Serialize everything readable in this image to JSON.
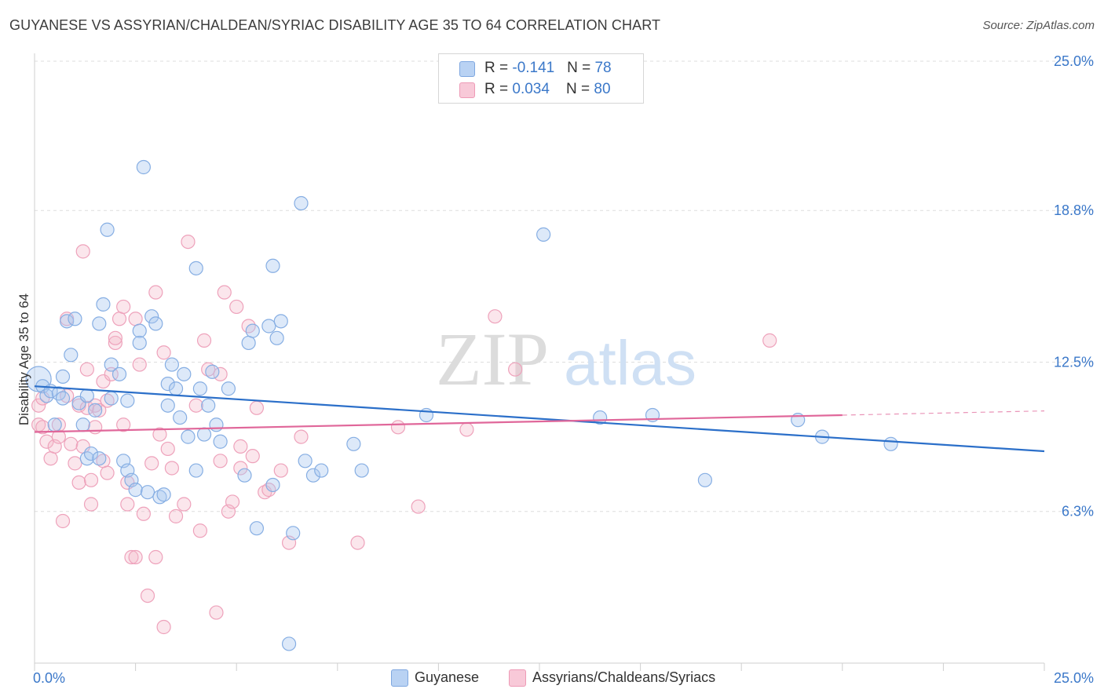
{
  "title": "GUYANESE VS ASSYRIAN/CHALDEAN/SYRIAC DISABILITY AGE 35 TO 64 CORRELATION CHART",
  "source": "Source: ZipAtlas.com",
  "watermark": {
    "zip": "ZIP",
    "atlas": "atlas"
  },
  "legend": {
    "series1": {
      "r_label": "R = ",
      "r_value": "-0.141",
      "n_label": "N = ",
      "n_value": "78"
    },
    "series2": {
      "r_label": "R = ",
      "r_value": "0.034",
      "n_label": "N = ",
      "n_value": "80"
    }
  },
  "chart_data": {
    "type": "scatter",
    "title": "GUYANESE VS ASSYRIAN/CHALDEAN/SYRIAC DISABILITY AGE 35 TO 64 CORRELATION CHART",
    "xlabel": "",
    "ylabel": "Disability Age 35 to 64",
    "xlim": [
      0,
      25
    ],
    "ylim": [
      0,
      25
    ],
    "x_tick_labels": [
      "0.0%",
      "25.0%"
    ],
    "y_tick_values": [
      6.3,
      12.5,
      18.8,
      25.0
    ],
    "y_tick_labels": [
      "6.3%",
      "12.5%",
      "18.8%",
      "25.0%"
    ],
    "grid": true,
    "legend_position": "top-center",
    "colors": {
      "guyanese": "#a9c7ef",
      "guyanese_line": "#2b6fc9",
      "assyrian": "#f4b6c9",
      "assyrian_line": "#e0679a"
    },
    "series": [
      {
        "name": "Guyanese",
        "r": -0.141,
        "n": 78,
        "trend": {
          "x": [
            0,
            25
          ],
          "y": [
            11.5,
            8.8
          ]
        },
        "points": [
          [
            0.1,
            11.8
          ],
          [
            0.2,
            11.5
          ],
          [
            0.3,
            11.1
          ],
          [
            0.4,
            11.3
          ],
          [
            0.5,
            9.9
          ],
          [
            0.6,
            11.2
          ],
          [
            0.7,
            11.0
          ],
          [
            0.7,
            11.9
          ],
          [
            0.8,
            14.2
          ],
          [
            0.9,
            12.8
          ],
          [
            1.0,
            14.3
          ],
          [
            1.1,
            10.8
          ],
          [
            1.2,
            9.9
          ],
          [
            1.3,
            8.5
          ],
          [
            1.3,
            11.1
          ],
          [
            1.4,
            8.7
          ],
          [
            1.5,
            10.5
          ],
          [
            1.6,
            8.5
          ],
          [
            1.6,
            14.1
          ],
          [
            1.7,
            14.9
          ],
          [
            1.8,
            18.0
          ],
          [
            1.9,
            11.0
          ],
          [
            1.9,
            12.4
          ],
          [
            2.1,
            12.0
          ],
          [
            2.2,
            8.4
          ],
          [
            2.3,
            10.9
          ],
          [
            2.3,
            8.0
          ],
          [
            2.4,
            7.6
          ],
          [
            2.5,
            7.2
          ],
          [
            2.6,
            13.8
          ],
          [
            2.6,
            13.3
          ],
          [
            2.7,
            20.6
          ],
          [
            2.8,
            7.1
          ],
          [
            2.9,
            14.4
          ],
          [
            3.0,
            14.1
          ],
          [
            3.1,
            6.9
          ],
          [
            3.2,
            7.0
          ],
          [
            3.3,
            11.6
          ],
          [
            3.3,
            10.7
          ],
          [
            3.4,
            12.4
          ],
          [
            3.5,
            11.4
          ],
          [
            3.6,
            10.2
          ],
          [
            3.7,
            12.0
          ],
          [
            3.8,
            9.4
          ],
          [
            4.0,
            16.4
          ],
          [
            4.0,
            8.0
          ],
          [
            4.1,
            11.4
          ],
          [
            4.2,
            9.5
          ],
          [
            4.3,
            10.7
          ],
          [
            4.4,
            12.1
          ],
          [
            4.5,
            9.9
          ],
          [
            4.6,
            9.2
          ],
          [
            4.8,
            11.4
          ],
          [
            5.2,
            7.8
          ],
          [
            5.3,
            13.3
          ],
          [
            5.4,
            13.8
          ],
          [
            5.5,
            5.6
          ],
          [
            5.8,
            14.0
          ],
          [
            5.9,
            7.4
          ],
          [
            5.9,
            16.5
          ],
          [
            6.0,
            13.5
          ],
          [
            6.1,
            14.2
          ],
          [
            6.4,
            5.4
          ],
          [
            6.6,
            19.1
          ],
          [
            6.7,
            8.4
          ],
          [
            6.9,
            7.8
          ],
          [
            7.1,
            8.0
          ],
          [
            7.9,
            9.1
          ],
          [
            8.1,
            8.0
          ],
          [
            9.7,
            10.3
          ],
          [
            12.6,
            17.8
          ],
          [
            14.0,
            10.2
          ],
          [
            15.3,
            10.3
          ],
          [
            16.6,
            7.6
          ],
          [
            18.9,
            10.1
          ],
          [
            19.5,
            9.4
          ],
          [
            21.2,
            9.1
          ],
          [
            6.3,
            0.8
          ]
        ]
      },
      {
        "name": "Assyrians/Chaldeans/Syriacs",
        "r": 0.034,
        "n": 80,
        "trend": {
          "x": [
            0,
            20
          ],
          "y": [
            9.6,
            10.3
          ]
        },
        "points": [
          [
            0.1,
            10.7
          ],
          [
            0.1,
            9.9
          ],
          [
            0.2,
            9.8
          ],
          [
            0.2,
            11.0
          ],
          [
            0.3,
            9.2
          ],
          [
            0.4,
            8.5
          ],
          [
            0.5,
            9.0
          ],
          [
            0.6,
            9.4
          ],
          [
            0.6,
            9.9
          ],
          [
            0.7,
            5.9
          ],
          [
            0.8,
            11.1
          ],
          [
            0.8,
            14.3
          ],
          [
            0.9,
            9.1
          ],
          [
            1.0,
            8.3
          ],
          [
            1.1,
            7.5
          ],
          [
            1.1,
            10.7
          ],
          [
            1.2,
            9.0
          ],
          [
            1.2,
            17.1
          ],
          [
            1.3,
            12.2
          ],
          [
            1.3,
            10.6
          ],
          [
            1.4,
            7.6
          ],
          [
            1.4,
            6.6
          ],
          [
            1.5,
            9.8
          ],
          [
            1.5,
            10.7
          ],
          [
            1.6,
            10.5
          ],
          [
            1.7,
            8.4
          ],
          [
            1.7,
            11.7
          ],
          [
            1.8,
            10.9
          ],
          [
            1.8,
            7.9
          ],
          [
            1.9,
            12.0
          ],
          [
            2.0,
            13.3
          ],
          [
            2.0,
            13.5
          ],
          [
            2.1,
            14.3
          ],
          [
            2.2,
            9.9
          ],
          [
            2.2,
            14.8
          ],
          [
            2.3,
            7.5
          ],
          [
            2.3,
            6.6
          ],
          [
            2.4,
            4.4
          ],
          [
            2.5,
            4.4
          ],
          [
            2.5,
            14.3
          ],
          [
            2.6,
            12.4
          ],
          [
            2.7,
            6.2
          ],
          [
            2.8,
            2.8
          ],
          [
            2.9,
            8.3
          ],
          [
            3.0,
            4.4
          ],
          [
            3.0,
            15.4
          ],
          [
            3.1,
            9.5
          ],
          [
            3.2,
            1.5
          ],
          [
            3.2,
            12.9
          ],
          [
            3.3,
            8.9
          ],
          [
            3.4,
            8.1
          ],
          [
            3.5,
            6.1
          ],
          [
            3.7,
            6.6
          ],
          [
            3.8,
            17.5
          ],
          [
            4.0,
            10.7
          ],
          [
            4.1,
            5.5
          ],
          [
            4.2,
            13.4
          ],
          [
            4.3,
            12.2
          ],
          [
            4.5,
            2.1
          ],
          [
            4.6,
            8.4
          ],
          [
            4.6,
            12.0
          ],
          [
            4.7,
            15.4
          ],
          [
            4.8,
            6.3
          ],
          [
            4.9,
            6.7
          ],
          [
            5.0,
            14.8
          ],
          [
            5.1,
            8.1
          ],
          [
            5.1,
            9.0
          ],
          [
            5.3,
            14.0
          ],
          [
            5.4,
            8.6
          ],
          [
            5.5,
            10.6
          ],
          [
            5.7,
            7.1
          ],
          [
            5.8,
            7.2
          ],
          [
            6.1,
            8.0
          ],
          [
            6.3,
            5.0
          ],
          [
            6.6,
            9.4
          ],
          [
            8.0,
            5.0
          ],
          [
            9.0,
            9.8
          ],
          [
            9.5,
            6.5
          ],
          [
            10.7,
            9.7
          ],
          [
            11.4,
            14.4
          ],
          [
            11.9,
            12.2
          ],
          [
            18.2,
            13.4
          ]
        ]
      }
    ]
  },
  "bottom_legend": {
    "series1_label": "Guyanese",
    "series2_label": "Assyrians/Chaldeans/Syriacs"
  }
}
